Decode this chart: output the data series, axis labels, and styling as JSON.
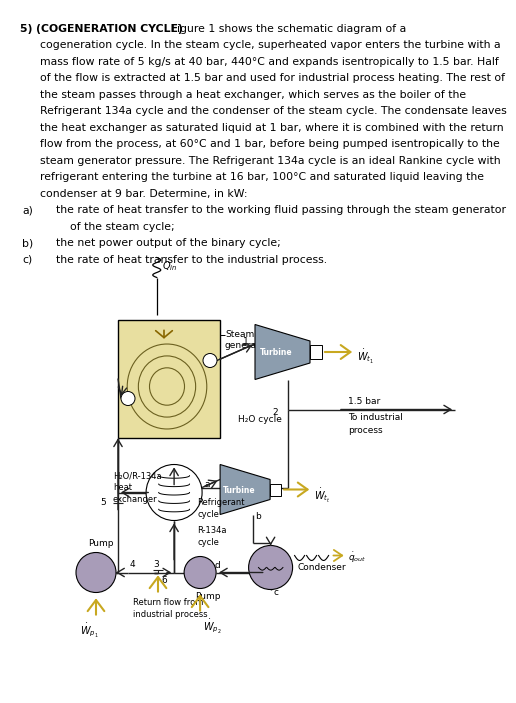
{
  "text_lines": [
    {
      "text": "5) (COGENERATION CYCLE)",
      "bold": true,
      "indent": 0,
      "continued": true
    },
    {
      "text": " Figure 1 shows the schematic diagram of a",
      "bold": false,
      "indent": 0,
      "continued": false
    },
    {
      "text": "cogeneration cycle. In the steam cycle, superheated vapor enters the turbine with a",
      "bold": false,
      "indent": 1,
      "continued": false
    },
    {
      "text": "mass flow rate of 5 kg/s at 40 bar, 440°C and expands isentropically to 1.5 bar. Half",
      "bold": false,
      "indent": 1,
      "continued": false
    },
    {
      "text": "of the flow is extracted at 1.5 bar and used for industrial process heating. The rest of",
      "bold": false,
      "indent": 1,
      "continued": false
    },
    {
      "text": "the steam passes through a heat exchanger, which serves as the boiler of the",
      "bold": false,
      "indent": 1,
      "continued": false
    },
    {
      "text": "Refrigerant 134a cycle and the condenser of the steam cycle. The condensate leaves",
      "bold": false,
      "indent": 1,
      "continued": false
    },
    {
      "text": "the heat exchanger as saturated liquid at 1 bar, where it is combined with the return",
      "bold": false,
      "indent": 1,
      "continued": false
    },
    {
      "text": "flow from the process, at 60°C and 1 bar, before being pumped isentropically to the",
      "bold": false,
      "indent": 1,
      "continued": false
    },
    {
      "text": "steam generator pressure. The Refrigerant 134a cycle is an ideal Rankine cycle with",
      "bold": false,
      "indent": 1,
      "continued": false
    },
    {
      "text": "refrigerant entering the turbine at 16 bar, 100°C and saturated liquid leaving the",
      "bold": false,
      "indent": 1,
      "continued": false
    },
    {
      "text": "condenser at 9 bar. Determine, in kW:",
      "bold": false,
      "indent": 1,
      "continued": false
    },
    {
      "text": "a) the rate of heat transfer to the working fluid passing through the steam generator",
      "bold": false,
      "indent": 0,
      "continued": false,
      "item": true
    },
    {
      "text": "of the steam cycle;",
      "bold": false,
      "indent": 2,
      "continued": false
    },
    {
      "text": "b) the net power output of the binary cycle;",
      "bold": false,
      "indent": 0,
      "continued": false,
      "item": true
    },
    {
      "text": "c) the rate of heat transfer to the industrial process.",
      "bold": false,
      "indent": 0,
      "continued": false,
      "item": true
    }
  ],
  "sg_color": "#e8dfa0",
  "turbine_color": "#8c9dae",
  "pump_color": "#a89cb8",
  "arrow_color": "#c8a820",
  "line_color": "#222222"
}
